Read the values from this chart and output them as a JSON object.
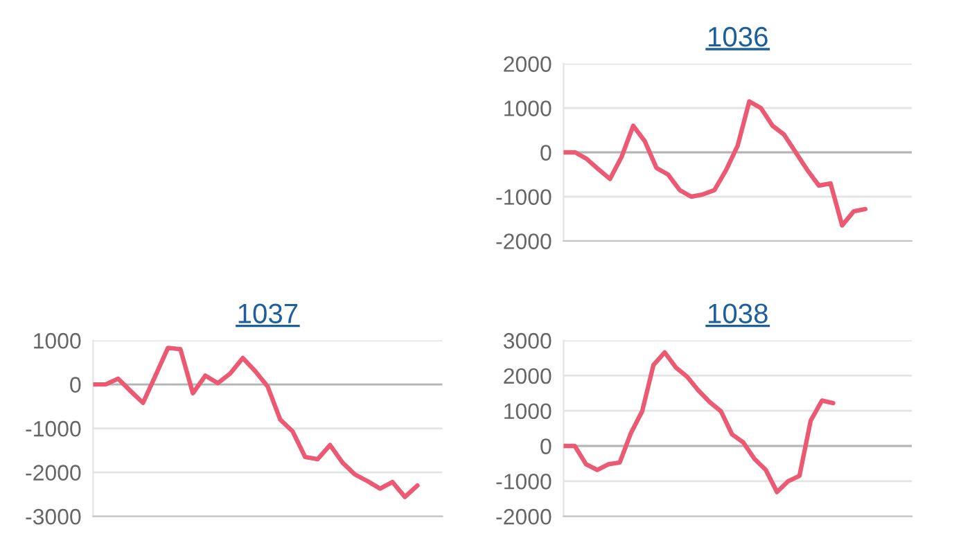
{
  "chart_data": [
    {
      "type": "line",
      "title": "1036",
      "categories": [
        null,
        null,
        null,
        null,
        null,
        null,
        null,
        null,
        null,
        null,
        null,
        null,
        null,
        null,
        null,
        null,
        null,
        null,
        null,
        null,
        null,
        null,
        null,
        null,
        null,
        null,
        null,
        null,
        null,
        null,
        null
      ],
      "series": [
        {
          "color": "#eb5a72",
          "values": [
            0,
            0,
            -150,
            -380,
            -600,
            -100,
            600,
            250,
            -350,
            -500,
            -850,
            -1000,
            -950,
            -850,
            -400,
            150,
            1150,
            1000,
            600,
            400,
            0,
            -400,
            -750,
            -700,
            -1650,
            -1330,
            -1280,
            null,
            null,
            null,
            null
          ]
        }
      ],
      "ylim": [
        -2000,
        2000
      ],
      "yticks": [
        -2000,
        -1000,
        0,
        1000,
        2000
      ],
      "grid": "y",
      "tick_labels": "y",
      "ref_lines": [
        {
          "axis": "y",
          "value": 0,
          "color": "#b4b4b4"
        }
      ]
    },
    {
      "type": "line",
      "title": "1037",
      "categories": [
        null,
        null,
        null,
        null,
        null,
        null,
        null,
        null,
        null,
        null,
        null,
        null,
        null,
        null,
        null,
        null,
        null,
        null,
        null,
        null,
        null,
        null,
        null,
        null,
        null,
        null,
        null,
        null,
        null
      ],
      "series": [
        {
          "color": "#eb5a72",
          "values": [
            0,
            0,
            130,
            -150,
            -420,
            200,
            830,
            800,
            -200,
            200,
            30,
            250,
            600,
            300,
            -50,
            -800,
            -1070,
            -1650,
            -1700,
            -1380,
            -1780,
            -2050,
            -2200,
            -2370,
            -2220,
            -2560,
            -2300,
            null,
            null
          ]
        }
      ],
      "ylim": [
        -3000,
        1000
      ],
      "yticks": [
        -3000,
        -2000,
        -1000,
        0,
        1000
      ],
      "grid": "y",
      "tick_labels": "y",
      "ref_lines": [
        {
          "axis": "y",
          "value": 0,
          "color": "#b4b4b4"
        }
      ]
    },
    {
      "type": "line",
      "title": "1038",
      "categories": [
        null,
        null,
        null,
        null,
        null,
        null,
        null,
        null,
        null,
        null,
        null,
        null,
        null,
        null,
        null,
        null,
        null,
        null,
        null,
        null,
        null,
        null,
        null,
        null,
        null,
        null,
        null,
        null,
        null,
        null,
        null,
        null
      ],
      "series": [
        {
          "color": "#eb5a72",
          "values": [
            0,
            0,
            -520,
            -680,
            -520,
            -470,
            370,
            990,
            2300,
            2660,
            2230,
            1970,
            1580,
            1250,
            990,
            330,
            100,
            -370,
            -680,
            -1310,
            -1000,
            -850,
            720,
            1290,
            1220,
            null,
            null,
            null,
            null,
            null,
            null,
            null
          ]
        }
      ],
      "ylim": [
        -2000,
        3000
      ],
      "yticks": [
        -2000,
        -1000,
        0,
        1000,
        2000,
        3000
      ],
      "grid": "y",
      "tick_labels": "y",
      "ref_lines": [
        {
          "axis": "y",
          "value": 0,
          "color": "#b4b4b4"
        }
      ]
    }
  ]
}
